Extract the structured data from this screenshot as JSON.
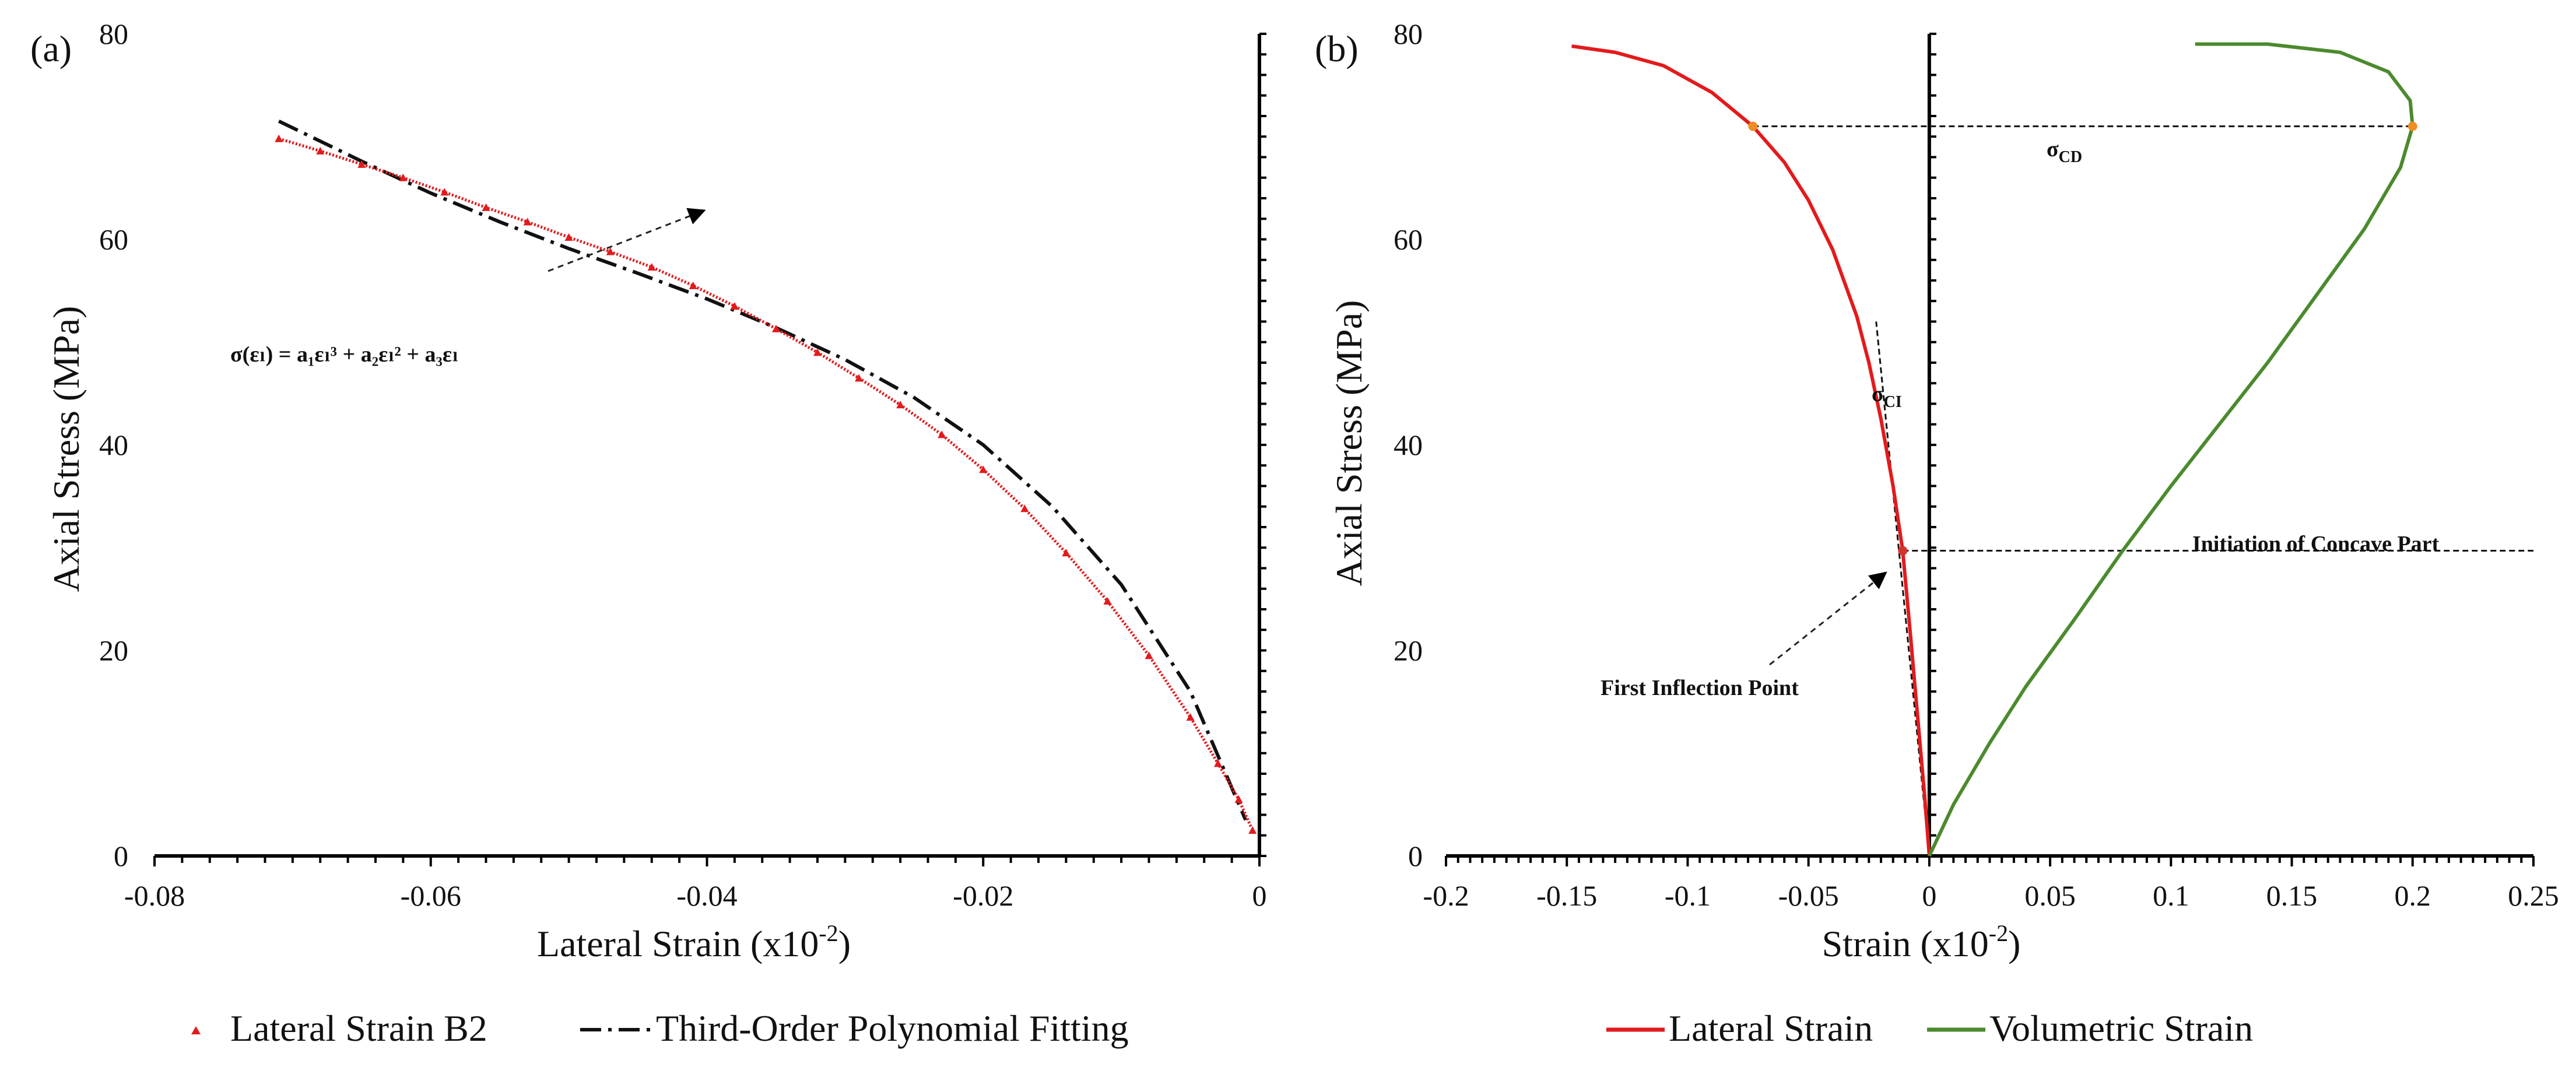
{
  "colors": {
    "lateral": "#e31a1c",
    "volumetric": "#4b8a2e",
    "fit": "#111111",
    "axis": "#000000",
    "point": "#f08c24"
  },
  "panel_a": {
    "label": "(a)"
  },
  "panel_b": {
    "label": "(b)"
  },
  "annotations": {
    "equation": "σ(εₗ) = a₁εₗ³ + a₂εₗ² + a₃εₗ",
    "sigma_cd": "σ",
    "sigma_cd_sub": "CD",
    "sigma_ci": "σ",
    "sigma_ci_sub": "CI",
    "inflection": "First Inflection Point",
    "concave": "Initiation of Concave Part"
  },
  "chart_data": [
    {
      "type": "scatter",
      "panel": "(a)",
      "xlabel": "Lateral Strain (x10",
      "xlabel_sup": "-2",
      "xlabel_end": ")",
      "ylabel": "Axial Stress (MPa)",
      "xlim": [
        -0.08,
        0
      ],
      "ylim": [
        0,
        80
      ],
      "xticks": [
        "-0.08",
        "-0.06",
        "-0.04",
        "-0.02",
        "0"
      ],
      "yticks": [
        "0",
        "20",
        "40",
        "60",
        "80"
      ],
      "grid": false,
      "legend_position": "bottom",
      "series": [
        {
          "name": "Lateral Strain B2",
          "style": "markers",
          "x": [
            -0.071,
            -0.068,
            -0.065,
            -0.062,
            -0.059,
            -0.056,
            -0.053,
            -0.05,
            -0.047,
            -0.044,
            -0.041,
            -0.038,
            -0.035,
            -0.032,
            -0.029,
            -0.026,
            -0.023,
            -0.02,
            -0.017,
            -0.014,
            -0.011,
            -0.008,
            -0.005,
            -0.003,
            -0.0015,
            -0.0005
          ],
          "y": [
            69.8,
            68.6,
            67.3,
            66.0,
            64.6,
            63.1,
            61.7,
            60.2,
            58.8,
            57.3,
            55.5,
            53.5,
            51.3,
            49.0,
            46.5,
            43.9,
            41.0,
            37.6,
            33.8,
            29.5,
            24.8,
            19.5,
            13.5,
            9.0,
            5.5,
            2.5
          ]
        },
        {
          "name": "Third-Order Polynomial Fitting",
          "style": "dash-dot",
          "x": [
            -0.071,
            -0.065,
            -0.06,
            -0.055,
            -0.05,
            -0.045,
            -0.04,
            -0.035,
            -0.03,
            -0.025,
            -0.02,
            -0.015,
            -0.01,
            -0.005,
            -0.001
          ],
          "y": [
            71.5,
            67.6,
            64.5,
            61.7,
            59.1,
            56.7,
            54.2,
            51.4,
            48.3,
            44.6,
            40.0,
            34.0,
            26.4,
            16.0,
            3.5
          ]
        }
      ]
    },
    {
      "type": "line",
      "panel": "(b)",
      "xlabel": "Strain (x10",
      "xlabel_sup": "-2",
      "xlabel_end": ")",
      "ylabel": "Axial Stress (MPa)",
      "xlim": [
        -0.2,
        0.25
      ],
      "ylim": [
        0,
        80
      ],
      "xticks": [
        "-0.2",
        "-0.15",
        "-0.1",
        "-0.05",
        "0",
        "0.05",
        "0.1",
        "0.15",
        "0.2",
        "0.25"
      ],
      "yticks": [
        "0",
        "20",
        "40",
        "60",
        "80"
      ],
      "grid": false,
      "legend_position": "bottom",
      "series": [
        {
          "name": "Lateral Strain",
          "x": [
            0,
            -0.002,
            -0.005,
            -0.008,
            -0.011,
            -0.015,
            -0.02,
            -0.025,
            -0.03,
            -0.04,
            -0.05,
            -0.06,
            -0.073,
            -0.09,
            -0.11,
            -0.13,
            -0.148
          ],
          "y": [
            0,
            6,
            14,
            22,
            29.7,
            36,
            42.5,
            48,
            52.5,
            59,
            63.8,
            67.5,
            71,
            74.3,
            76.9,
            78.2,
            78.8
          ]
        },
        {
          "name": "Volumetric Strain",
          "x": [
            0,
            0.01,
            0.025,
            0.04,
            0.06,
            0.08,
            0.1,
            0.12,
            0.14,
            0.16,
            0.18,
            0.195,
            0.2,
            0.199,
            0.19,
            0.17,
            0.14,
            0.11
          ],
          "y": [
            0,
            5,
            11,
            16.5,
            23,
            29.7,
            36,
            42,
            48,
            54.5,
            61,
            67,
            71,
            73.5,
            76.3,
            78.2,
            79,
            79
          ]
        }
      ],
      "reference_lines": {
        "sigma_cd_level": 71,
        "concave_level": 29.7,
        "ci_tangent": {
          "x": [
            0,
            -0.022
          ],
          "y": [
            0,
            52
          ]
        }
      },
      "key_points": [
        {
          "x": -0.073,
          "y": 71
        },
        {
          "x": 0.2,
          "y": 71
        },
        {
          "x": -0.011,
          "y": 29.7
        }
      ]
    }
  ]
}
